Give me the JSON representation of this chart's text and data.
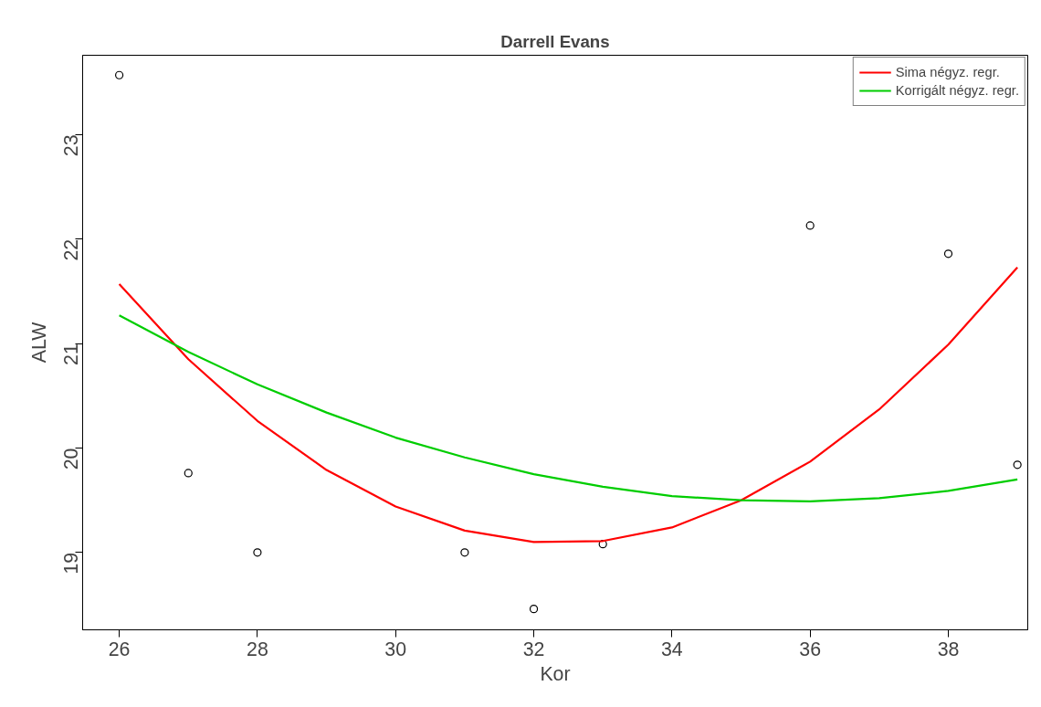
{
  "chart_data": {
    "type": "scatter",
    "title": "Darrell Evans",
    "xlabel": "Kor",
    "ylabel": "ALW",
    "xlim": [
      25.47,
      39.15
    ],
    "ylim": [
      18.26,
      23.76
    ],
    "xticks": [
      26,
      28,
      30,
      32,
      34,
      36,
      38
    ],
    "yticks": [
      19,
      20,
      21,
      22,
      23
    ],
    "grid": false,
    "legend": "top right",
    "series": [
      {
        "marker": "circle",
        "color": "#000000",
        "x": [
          26,
          27,
          28,
          31,
          32,
          33,
          36,
          38,
          39
        ],
        "values": [
          23.57,
          19.76,
          19.0,
          19.0,
          18.46,
          19.08,
          22.13,
          21.86,
          19.84
        ]
      },
      {
        "type": "line",
        "name": "Sima négyz. regr.",
        "color": "#ff0000",
        "x": [
          26,
          27,
          28,
          29,
          30,
          31,
          32,
          33,
          34,
          35,
          36,
          37,
          38,
          39
        ],
        "values": [
          21.57,
          20.85,
          20.26,
          19.79,
          19.44,
          19.21,
          19.1,
          19.11,
          19.24,
          19.5,
          19.87,
          20.37,
          20.99,
          21.73
        ]
      },
      {
        "type": "line",
        "name": "Korrigált négyz. regr.",
        "color": "#00cd00",
        "x": [
          26,
          27,
          28,
          29,
          30,
          31,
          32,
          33,
          34,
          35,
          36,
          37,
          38,
          39
        ],
        "values": [
          21.27,
          20.92,
          20.61,
          20.34,
          20.1,
          19.91,
          19.75,
          19.63,
          19.54,
          19.5,
          19.49,
          19.52,
          19.59,
          19.7
        ]
      }
    ]
  }
}
